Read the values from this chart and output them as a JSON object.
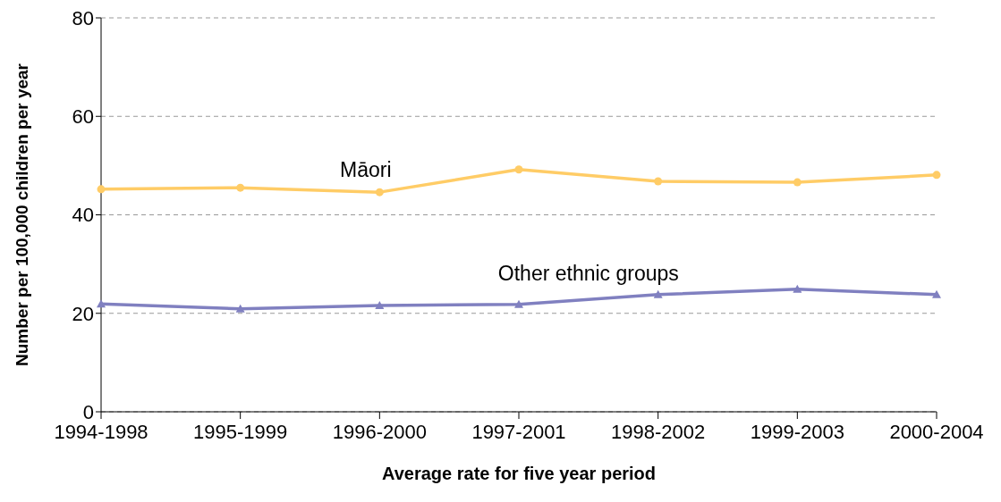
{
  "chart_data": {
    "type": "line",
    "xlabel": "Average rate for five year period",
    "ylabel": "Number per 100,000 children per year",
    "categories": [
      "1994-1998",
      "1995-1999",
      "1996-2000",
      "1997-2001",
      "1998-2002",
      "1999-2003",
      "2000-2004"
    ],
    "series": [
      {
        "name": "Māori",
        "color": "#ffcc66",
        "marker": "circle",
        "values": [
          45.2,
          45.5,
          44.6,
          49.2,
          46.8,
          46.6,
          48.1
        ]
      },
      {
        "name": "Other ethnic groups",
        "color": "#8080c0",
        "marker": "triangle",
        "values": [
          21.9,
          20.9,
          21.6,
          21.8,
          23.8,
          24.9,
          23.8
        ]
      }
    ],
    "ylim": [
      0,
      80
    ],
    "yticks": [
      0,
      20,
      40,
      60,
      80
    ],
    "grid": "y",
    "legend": false,
    "line_style": "solid"
  }
}
